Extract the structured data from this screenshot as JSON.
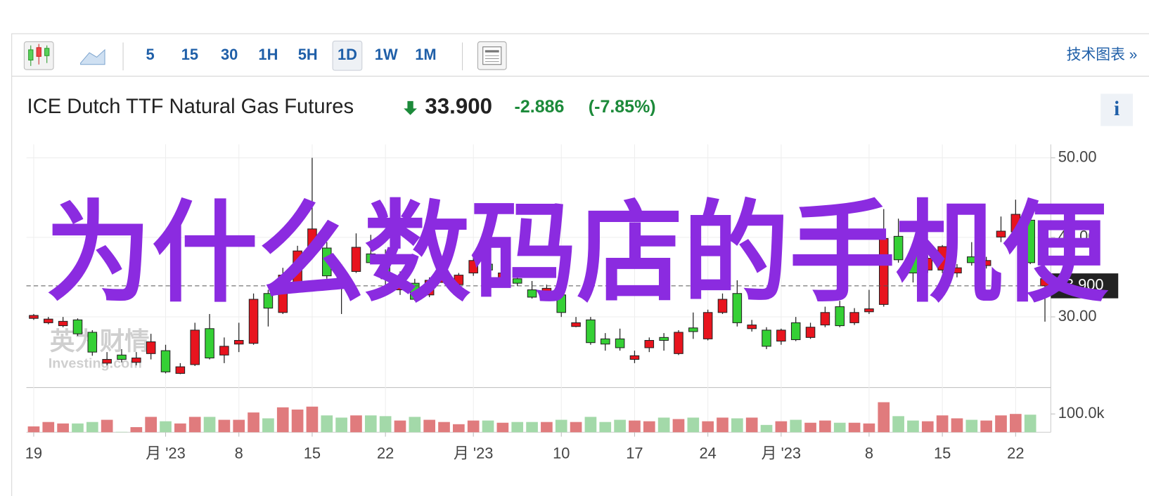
{
  "toolbar": {
    "intervals": [
      "5",
      "15",
      "30",
      "1H",
      "5H",
      "1D",
      "1W",
      "1M"
    ],
    "link": "技术图表 »"
  },
  "header": {
    "title": "ICE Dutch TTF Natural Gas Futures",
    "price": "33.900",
    "change": "-2.886",
    "change_percent": "(-7.85%)"
  },
  "info_button": "i",
  "watermark": "为什么数码店的手机便",
  "logo": {
    "cn": "英为财情",
    "en": "Investing.com"
  },
  "chart_data": {
    "type": "candlestick",
    "categories": [
      "19",
      null,
      null,
      null,
      null,
      null,
      null,
      null,
      null,
      "月 '23",
      null,
      null,
      null,
      null,
      "8",
      null,
      null,
      null,
      null,
      "15",
      null,
      null,
      null,
      null,
      "22",
      null,
      null,
      null,
      null,
      null,
      "月 '23",
      null,
      null,
      null,
      null,
      null,
      "10",
      null,
      null,
      null,
      null,
      "17",
      null,
      null,
      null,
      null,
      "24",
      null,
      null,
      null,
      null,
      "月 '23",
      null,
      null,
      null,
      null,
      null,
      "8",
      null,
      null,
      null,
      null,
      "15",
      null,
      null,
      null,
      null,
      "22",
      null,
      null
    ],
    "open": [
      30.18,
      29.72,
      29.44,
      27.87,
      25.57,
      24.65,
      24.65,
      24.83,
      26.86,
      23.08,
      23.72,
      28.33,
      24.83,
      26.3,
      27.04,
      32.21,
      31.1,
      35.25,
      38.29,
      41.06,
      35.16,
      33.87,
      38.75,
      36.82,
      34.79,
      34.79,
      32.21,
      34.6,
      35.25,
      35.25,
      37.09,
      35.89,
      35.52,
      34.23,
      32.48,
      33.59,
      30.55,
      29.26,
      26.76,
      26.58,
      26.12,
      25.11,
      27.04,
      27.04,
      28.06,
      28.15,
      30.55,
      32.21,
      29.26,
      28.98,
      26.3,
      28.33,
      27.13,
      28.7,
      30.55,
      28.89,
      30.55,
      31.01,
      39.86,
      37.18,
      35.52,
      37.37,
      38.84,
      36.17,
      36.82,
      37.09,
      40.78,
      42.9,
      36.82,
      34.8
    ],
    "high": [
      30.36,
      29.99,
      29.99,
      29.81,
      28.33,
      25.57,
      25.94,
      25.57,
      27.87,
      26.49,
      24.18,
      29.26,
      30.36,
      27.41,
      29.26,
      32.94,
      33.4,
      36.17,
      38.94,
      50.0,
      39.4,
      36.63,
      40.5,
      40.32,
      38.48,
      35.71,
      34.79,
      34.97,
      35.89,
      35.52,
      38.01,
      37.55,
      36.08,
      35.52,
      34.51,
      34.05,
      33.13,
      29.99,
      29.99,
      27.96,
      28.52,
      25.75,
      27.41,
      27.96,
      28.33,
      30.55,
      30.91,
      32.94,
      34.6,
      29.62,
      28.7,
      28.52,
      29.99,
      29.26,
      31.28,
      32.02,
      31.1,
      33.4,
      43.55,
      42.35,
      38.48,
      37.74,
      39.03,
      36.63,
      39.4,
      37.55,
      42.62,
      44.74,
      42.62,
      35.2
    ],
    "low": [
      29.62,
      29.07,
      28.7,
      27.6,
      25.11,
      23.91,
      24.28,
      23.91,
      24.65,
      22.89,
      22.8,
      23.82,
      24.65,
      24.18,
      25.57,
      26.49,
      28.79,
      30.36,
      33.4,
      37.55,
      34.79,
      30.36,
      35.52,
      36.63,
      33.87,
      32.76,
      32.02,
      32.48,
      34.33,
      33.68,
      35.16,
      35.52,
      33.68,
      33.87,
      32.3,
      32.48,
      29.99,
      28.7,
      26.49,
      25.75,
      25.75,
      24.18,
      25.57,
      25.75,
      25.2,
      27.23,
      27.04,
      30.36,
      28.79,
      28.15,
      25.94,
      26.49,
      26.95,
      27.23,
      28.7,
      28.7,
      28.98,
      30.36,
      31.28,
      36.82,
      34.33,
      35.52,
      35.52,
      34.97,
      36.45,
      36.08,
      39.4,
      38.94,
      36.63,
      29.4
    ],
    "close": [
      29.81,
      29.26,
      28.89,
      29.62,
      28.06,
      24.18,
      25.2,
      24.28,
      25.38,
      25.75,
      22.89,
      24.0,
      28.52,
      25.2,
      26.58,
      26.67,
      32.94,
      30.55,
      34.33,
      38.01,
      38.66,
      35.71,
      35.71,
      37.92,
      37.55,
      33.4,
      34.23,
      32.76,
      34.33,
      34.05,
      35.52,
      36.63,
      34.05,
      34.79,
      33.4,
      32.76,
      32.76,
      28.79,
      29.62,
      27.23,
      27.23,
      24.65,
      26.12,
      27.41,
      25.38,
      28.61,
      27.23,
      30.55,
      32.94,
      28.52,
      28.33,
      26.95,
      29.26,
      27.41,
      28.98,
      31.28,
      29.26,
      30.64,
      31.56,
      40.13,
      37.74,
      35.89,
      35.89,
      35.52,
      37.55,
      36.45,
      40.04,
      40.69,
      42.16,
      33.9
    ],
    "volume": [
      32000,
      56000,
      48000,
      48000,
      56000,
      68000,
      2000,
      28000,
      84000,
      60000,
      48000,
      84000,
      84000,
      68000,
      68000,
      108000,
      76000,
      136000,
      124000,
      140000,
      92000,
      80000,
      92000,
      92000,
      88000,
      64000,
      84000,
      68000,
      56000,
      44000,
      64000,
      64000,
      52000,
      56000,
      56000,
      56000,
      68000,
      56000,
      84000,
      56000,
      68000,
      64000,
      60000,
      80000,
      72000,
      80000,
      60000,
      80000,
      76000,
      80000,
      40000,
      60000,
      68000,
      52000,
      64000,
      52000,
      52000,
      48000,
      164000,
      88000,
      64000,
      60000,
      92000,
      76000,
      68000,
      64000,
      92000,
      100000,
      96000,
      null
    ],
    "up_color": "#35d035",
    "down_color": "#e8141e",
    "up_volume_color": "#a3d9a9",
    "down_volume_color": "#e07b7d",
    "ylim": [
      21.2,
      51.7
    ],
    "yticks": [
      {
        "value": 30,
        "label": "30.00"
      },
      {
        "value": 40,
        "label": "40.00"
      },
      {
        "value": 50,
        "label": "50.00"
      }
    ],
    "volume_ylim": [
      0,
      240000
    ],
    "volume_ticks": [
      {
        "value": 100000,
        "label": "100.0k"
      }
    ],
    "last_price": {
      "value": 33.9,
      "label": "33.900"
    },
    "grid": true
  }
}
